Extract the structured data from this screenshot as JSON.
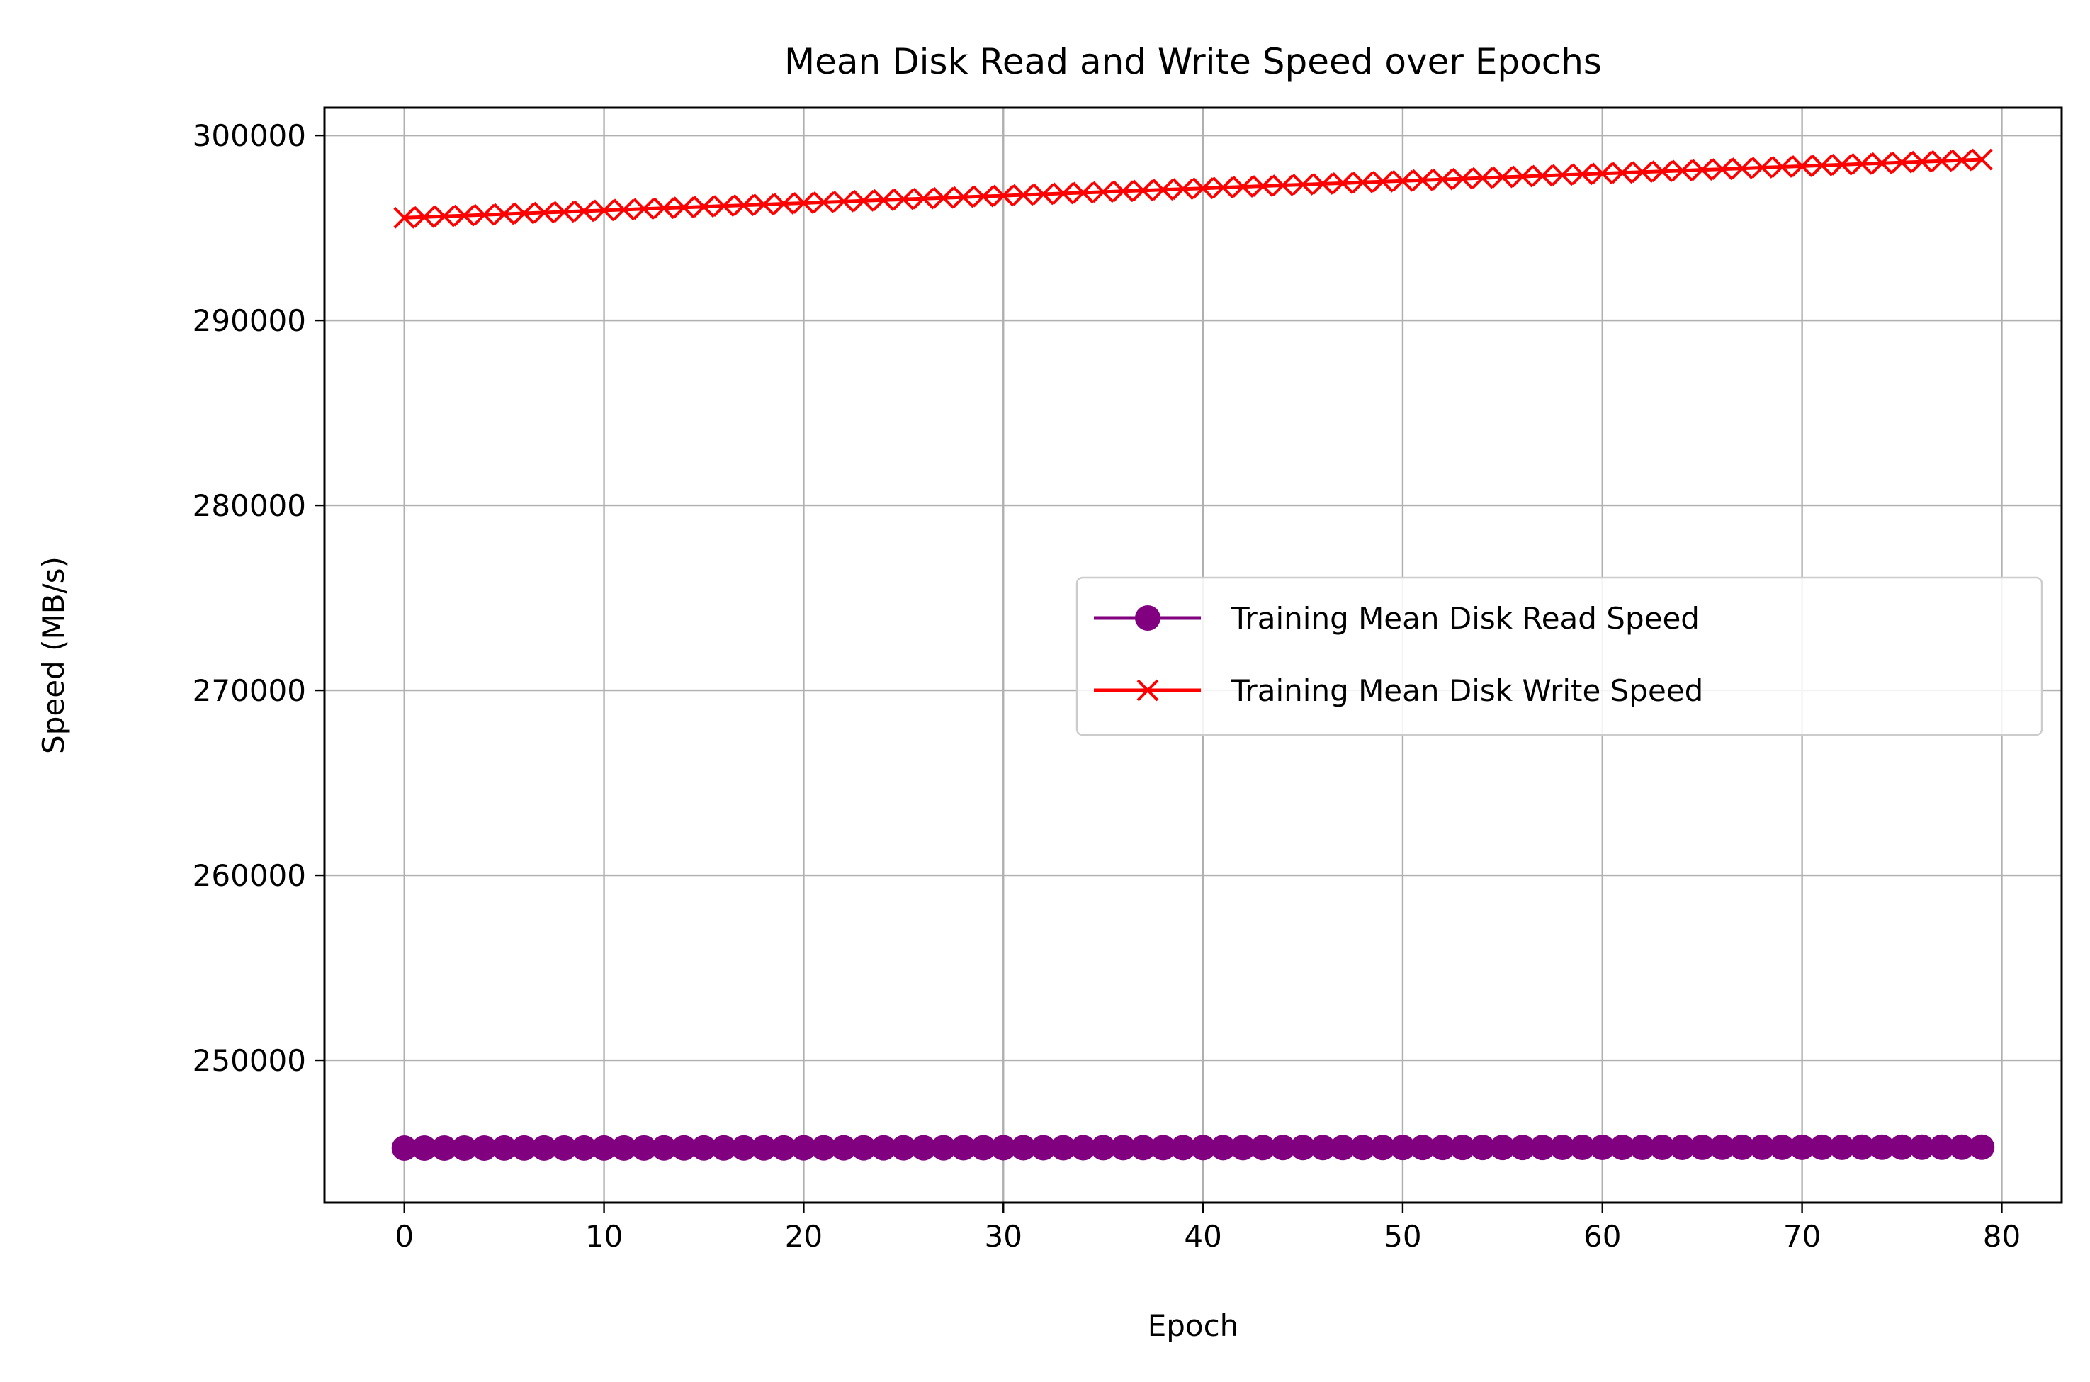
{
  "chart_data": {
    "type": "line",
    "title": "Mean Disk Read and Write Speed over Epochs",
    "xlabel": "Epoch",
    "ylabel": "Speed (MB/s)",
    "xlim": [
      -4,
      83
    ],
    "ylim": [
      242300,
      301500
    ],
    "xticks": [
      0,
      10,
      20,
      30,
      40,
      50,
      60,
      70,
      80
    ],
    "yticks": [
      250000,
      260000,
      270000,
      280000,
      290000,
      300000
    ],
    "x_start": 0,
    "x_end": 79,
    "grid": true,
    "legend_position": "center-right",
    "series": [
      {
        "name": "Training Mean Disk Read Speed",
        "color": "#800080",
        "marker": "circle",
        "start_value": 245250,
        "end_value": 245300
      },
      {
        "name": "Training Mean Disk Write Speed",
        "color": "#ff0000",
        "marker": "x",
        "start_value": 295550,
        "end_value": 298700
      }
    ]
  }
}
